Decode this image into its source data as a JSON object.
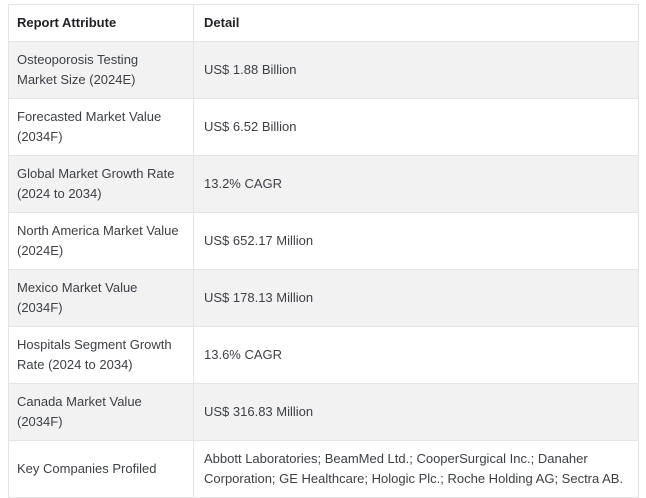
{
  "colors": {
    "stripe_row_bg": "#f2f2f2",
    "plain_row_bg": "#ffffff",
    "border": "#e4e4e4",
    "header_text": "#1f2125",
    "body_text": "#3d4045"
  },
  "table": {
    "columns": {
      "attribute": "Report Attribute",
      "detail": "Detail"
    },
    "rows": [
      {
        "attribute": "Osteoporosis Testing Market Size (2024E)",
        "detail": "US$ 1.88 Billion"
      },
      {
        "attribute": "Forecasted Market Value (2034F)",
        "detail": "US$ 6.52 Billion"
      },
      {
        "attribute": "Global Market Growth Rate (2024 to 2034)",
        "detail": "13.2% CAGR"
      },
      {
        "attribute": "North America Market Value (2024E)",
        "detail": "US$ 652.17 Million"
      },
      {
        "attribute": "Mexico Market Value (2034F)",
        "detail": "US$ 178.13 Million"
      },
      {
        "attribute": "Hospitals Segment Growth Rate (2024 to 2034)",
        "detail": "13.6% CAGR"
      },
      {
        "attribute": "Canada Market Value (2034F)",
        "detail": "US$ 316.83 Million"
      },
      {
        "attribute": "Key Companies Profiled",
        "detail": "Abbott Laboratories; BeamMed Ltd.; CooperSurgical Inc.; Danaher Corporation; GE Healthcare; Hologic Plc.; Roche Holding AG; Sectra AB."
      }
    ]
  }
}
